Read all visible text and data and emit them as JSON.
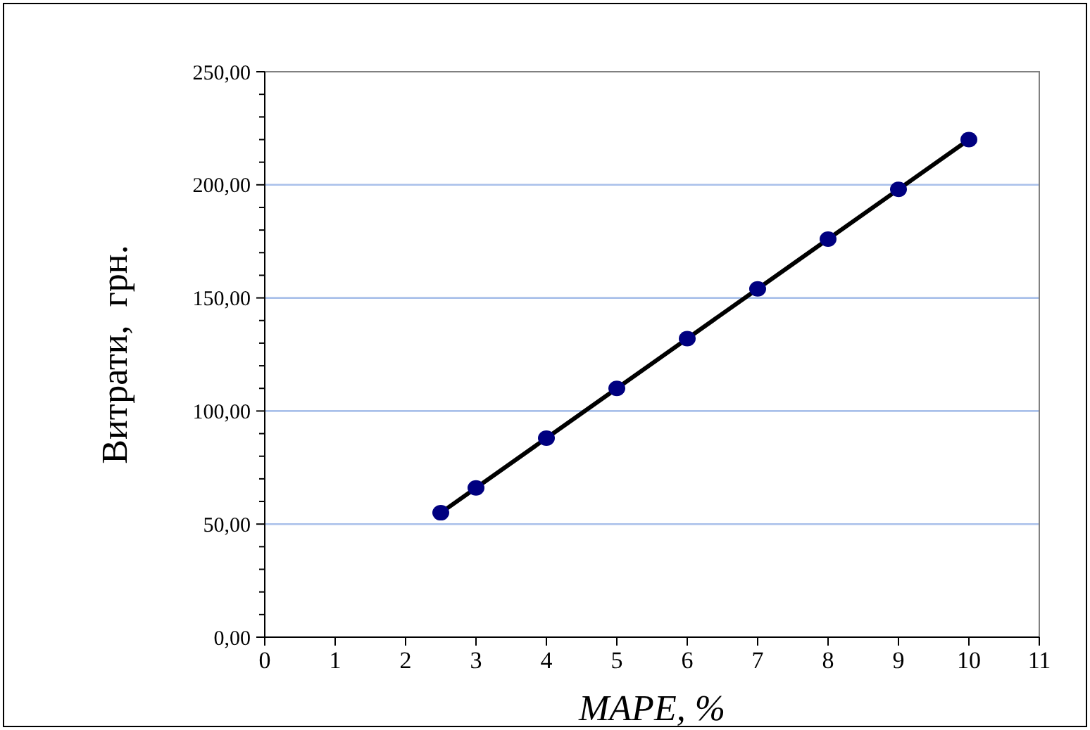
{
  "chart_data": {
    "type": "line",
    "xlabel": "MAPE, %",
    "ylabel": "Витрати,  грн.",
    "x": [
      2.5,
      3,
      4,
      5,
      6,
      7,
      8,
      9,
      10
    ],
    "series": [
      {
        "color": "#000080",
        "values": [
          55,
          66,
          88,
          110,
          132,
          154,
          176,
          198,
          220
        ]
      }
    ],
    "xlim": [
      0,
      11
    ],
    "xticks": [
      0,
      1,
      2,
      3,
      4,
      5,
      6,
      7,
      8,
      9,
      10,
      11
    ],
    "ylim": [
      0,
      250
    ],
    "yticks": [
      {
        "value": 0,
        "label": "0,00"
      },
      {
        "value": 10,
        "label": null
      },
      {
        "value": 20,
        "label": null
      },
      {
        "value": 30,
        "label": null
      },
      {
        "value": 40,
        "label": null
      },
      {
        "value": 50,
        "label": "50,00"
      },
      {
        "value": 60,
        "label": null
      },
      {
        "value": 70,
        "label": null
      },
      {
        "value": 80,
        "label": null
      },
      {
        "value": 90,
        "label": null
      },
      {
        "value": 100,
        "label": "100,00"
      },
      {
        "value": 110,
        "label": null
      },
      {
        "value": 120,
        "label": null
      },
      {
        "value": 130,
        "label": null
      },
      {
        "value": 140,
        "label": null
      },
      {
        "value": 150,
        "label": "150,00"
      },
      {
        "value": 160,
        "label": null
      },
      {
        "value": 170,
        "label": null
      },
      {
        "value": 180,
        "label": null
      },
      {
        "value": 190,
        "label": null
      },
      {
        "value": 200,
        "label": "200,00"
      },
      {
        "value": 210,
        "label": null
      },
      {
        "value": 220,
        "label": null
      },
      {
        "value": 230,
        "label": null
      },
      {
        "value": 240,
        "label": null
      },
      {
        "value": 250,
        "label": "250,00"
      }
    ],
    "grid": "y",
    "marker": "circle",
    "line_style": "solid"
  }
}
